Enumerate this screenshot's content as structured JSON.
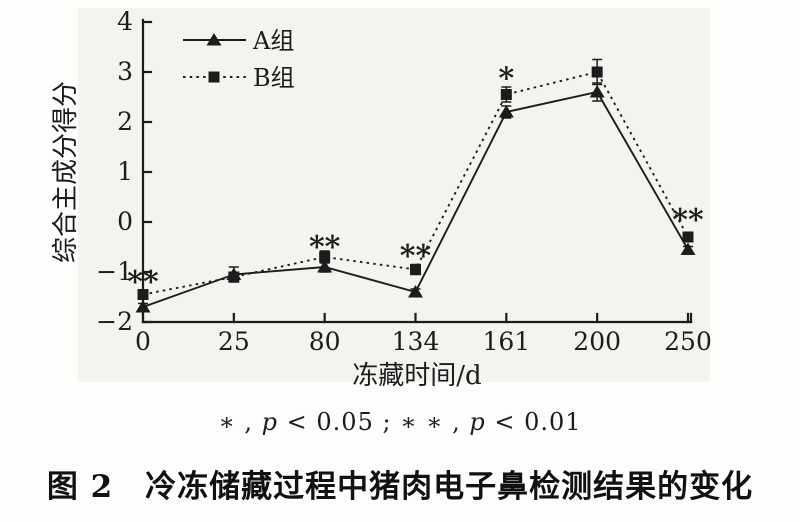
{
  "figure": {
    "caption": {
      "part1": "∗ , ",
      "p1": "p",
      "part2": " < 0.05 ;   ∗ ∗ , ",
      "p2": "p",
      "part3": " < 0.01"
    }
  },
  "chart_data": {
    "type": "line",
    "title": "图 2　冷冻储藏过程中猪肉电子鼻检测结果的变化",
    "xlabel": "冻藏时间/d",
    "ylabel": "综合主成分得分",
    "categories": [
      "0",
      "25",
      "80",
      "134",
      "161",
      "200",
      "250"
    ],
    "y_ticks": [
      4,
      3,
      2,
      1,
      0,
      -1,
      -2
    ],
    "ylim": [
      -2,
      4
    ],
    "grid": false,
    "legend_position": "top-left-inside",
    "ink_color": "#1c1c1c",
    "series": [
      {
        "name": "A组",
        "line_style": "solid",
        "marker": "triangle",
        "color": "#1c1c1c",
        "values": [
          -1.7,
          -1.05,
          -0.9,
          -1.4,
          2.2,
          2.6,
          -0.55
        ],
        "errors": [
          0.07,
          0.15,
          0.1,
          0.06,
          0.12,
          0.18,
          0.06
        ]
      },
      {
        "name": "B组",
        "line_style": "dotted",
        "marker": "square",
        "color": "#1c1c1c",
        "values": [
          -1.45,
          -1.1,
          -0.7,
          -0.95,
          2.55,
          3.0,
          -0.3
        ],
        "errors": [
          0.08,
          0.06,
          0.12,
          0.1,
          0.15,
          0.25,
          0.08
        ]
      }
    ],
    "significance_annotations": [
      {
        "category": "0",
        "y": -1.12,
        "text": "**"
      },
      {
        "category": "80",
        "y": -0.42,
        "text": "**"
      },
      {
        "category": "134",
        "y": -0.6,
        "text": "**"
      },
      {
        "category": "161",
        "y": 2.95,
        "text": "*"
      },
      {
        "category": "250",
        "y": 0.12,
        "text": "**"
      }
    ]
  }
}
